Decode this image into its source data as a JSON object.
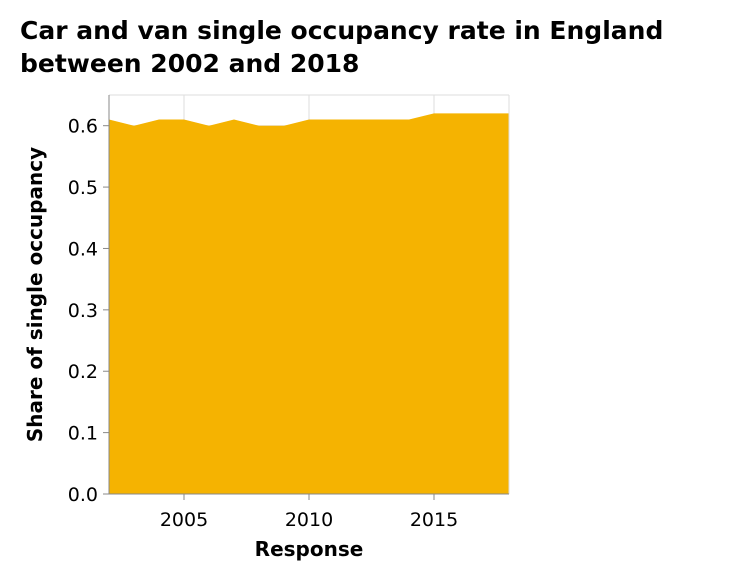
{
  "title_line1": "Car and van single occupancy rate in England",
  "title_line2": "between 2002 and 2018",
  "colors": {
    "area": "#f5b301",
    "grid": "#dddddd",
    "axis": "#888888"
  },
  "chart_data": {
    "type": "area",
    "title": "Car and van single occupancy rate in England between 2002 and 2018",
    "xlabel": "Response",
    "ylabel": "Share of single occupancy",
    "x": [
      2002,
      2003,
      2004,
      2005,
      2006,
      2007,
      2008,
      2009,
      2010,
      2011,
      2012,
      2013,
      2014,
      2015,
      2016,
      2017,
      2018
    ],
    "values": [
      0.61,
      0.6,
      0.61,
      0.61,
      0.6,
      0.61,
      0.6,
      0.6,
      0.61,
      0.61,
      0.61,
      0.61,
      0.61,
      0.62,
      0.62,
      0.62,
      0.62
    ],
    "xlim": [
      2002,
      2018
    ],
    "ylim": [
      0,
      0.65
    ],
    "x_ticks": [
      2005,
      2010,
      2015
    ],
    "x_tick_labels": [
      "2005",
      "2010",
      "2015"
    ],
    "y_ticks": [
      0,
      0.1,
      0.2,
      0.3,
      0.4,
      0.5,
      0.6
    ],
    "y_tick_labels": [
      "0.0",
      "0.1",
      "0.2",
      "0.3",
      "0.4",
      "0.5",
      "0.6"
    ],
    "grid": true,
    "legend": "none"
  }
}
